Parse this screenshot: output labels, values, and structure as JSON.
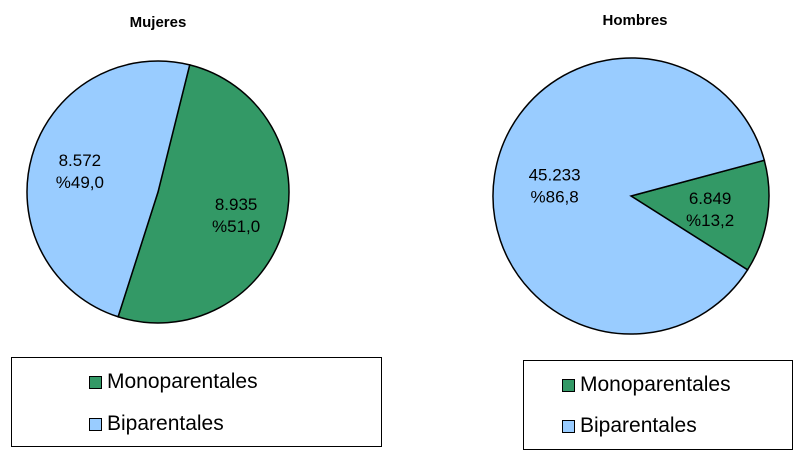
{
  "colors": {
    "monoparentales": "#339966",
    "biparentales": "#99ccff",
    "outline": "#000000"
  },
  "chart_data": [
    {
      "type": "pie",
      "title": "Mujeres",
      "slices": [
        {
          "name": "Monoparentales",
          "value": 8935,
          "label": "8.935",
          "percent_label": "%51,0"
        },
        {
          "name": "Biparentales",
          "value": 8572,
          "label": "8.572",
          "percent_label": "%49,0"
        }
      ],
      "legend": [
        "Monoparentales",
        "Biparentales"
      ],
      "legend_position": "bottom"
    },
    {
      "type": "pie",
      "title": "Hombres",
      "slices": [
        {
          "name": "Monoparentales",
          "value": 6849,
          "label": "6.849",
          "percent_label": "%13,2"
        },
        {
          "name": "Biparentales",
          "value": 45233,
          "label": "45.233",
          "percent_label": "%86,8"
        }
      ],
      "legend": [
        "Monoparentales",
        "Biparentales"
      ],
      "legend_position": "bottom"
    }
  ]
}
